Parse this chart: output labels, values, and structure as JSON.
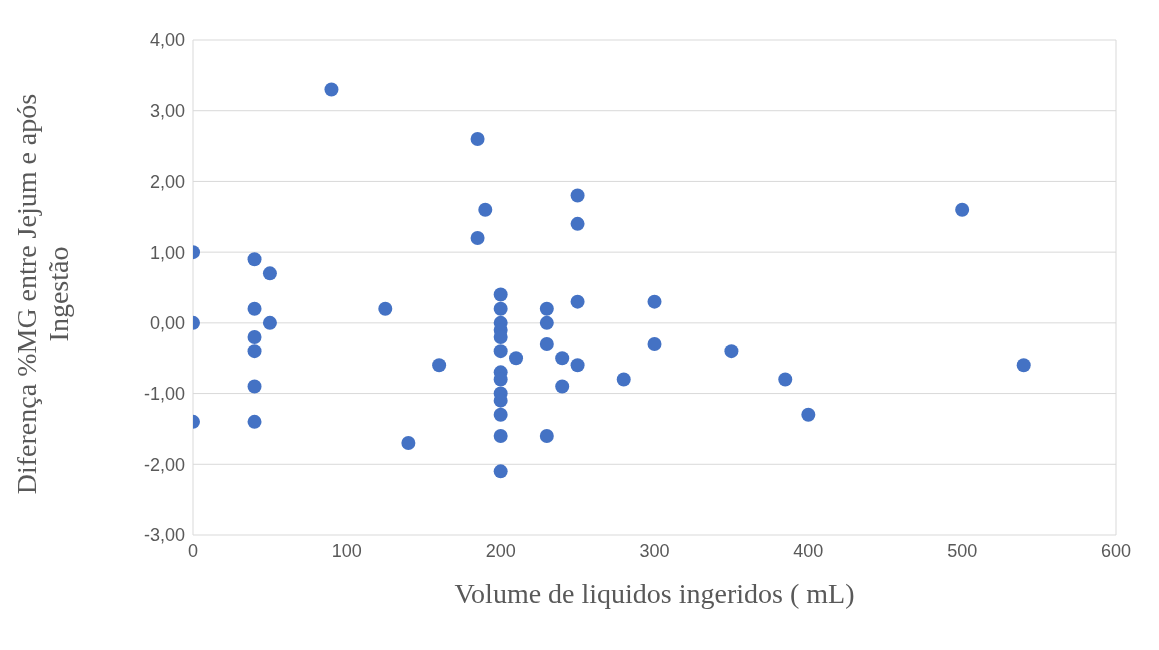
{
  "chart_data": {
    "type": "scatter",
    "xlabel": "Volume de liquidos ingeridos ( mL)",
    "ylabel": "Diferença %MG entre Jejum e após Ingestão",
    "color": "#4472c4",
    "marker": "circle",
    "grid": true,
    "legend": false,
    "x": [
      0,
      0,
      0,
      40,
      40,
      40,
      40,
      40,
      40,
      50,
      50,
      90,
      125,
      140,
      160,
      185,
      185,
      190,
      200,
      200,
      200,
      200,
      200,
      200,
      200,
      200,
      200,
      200,
      200,
      200,
      200,
      210,
      230,
      230,
      230,
      230,
      240,
      240,
      250,
      250,
      250,
      250,
      280,
      300,
      300,
      350,
      385,
      400,
      500,
      540
    ],
    "values": [
      1.0,
      0,
      -1.4,
      0.9,
      0.2,
      -0.2,
      -0.4,
      -0.9,
      -1.4,
      0.7,
      0,
      3.3,
      0.2,
      -1.7,
      -0.6,
      2.6,
      1.2,
      1.6,
      0.4,
      0.2,
      0,
      -0.1,
      -0.2,
      -0.4,
      -0.7,
      -0.8,
      -1.0,
      -1.1,
      -1.3,
      -1.6,
      -2.1,
      -0.5,
      0.2,
      0,
      -0.3,
      -1.6,
      -0.5,
      -0.9,
      1.8,
      1.4,
      0.3,
      -0.6,
      -0.8,
      0.3,
      -0.3,
      -0.4,
      -0.8,
      -1.3,
      1.6,
      -0.6
    ],
    "xlim": [
      0,
      600
    ],
    "xticks": [
      0,
      100,
      200,
      300,
      400,
      500,
      600
    ],
    "ylim": [
      -3,
      4
    ],
    "yticks": [
      {
        "value": -3,
        "label": "-3,00"
      },
      {
        "value": -2,
        "label": "-2,00"
      },
      {
        "value": -1,
        "label": "-1,00"
      },
      {
        "value": 0,
        "label": "0,00"
      },
      {
        "value": 1,
        "label": "1,00"
      },
      {
        "value": 2,
        "label": "2,00"
      },
      {
        "value": 3,
        "label": "3,00"
      },
      {
        "value": 4,
        "label": "4,00"
      }
    ]
  }
}
